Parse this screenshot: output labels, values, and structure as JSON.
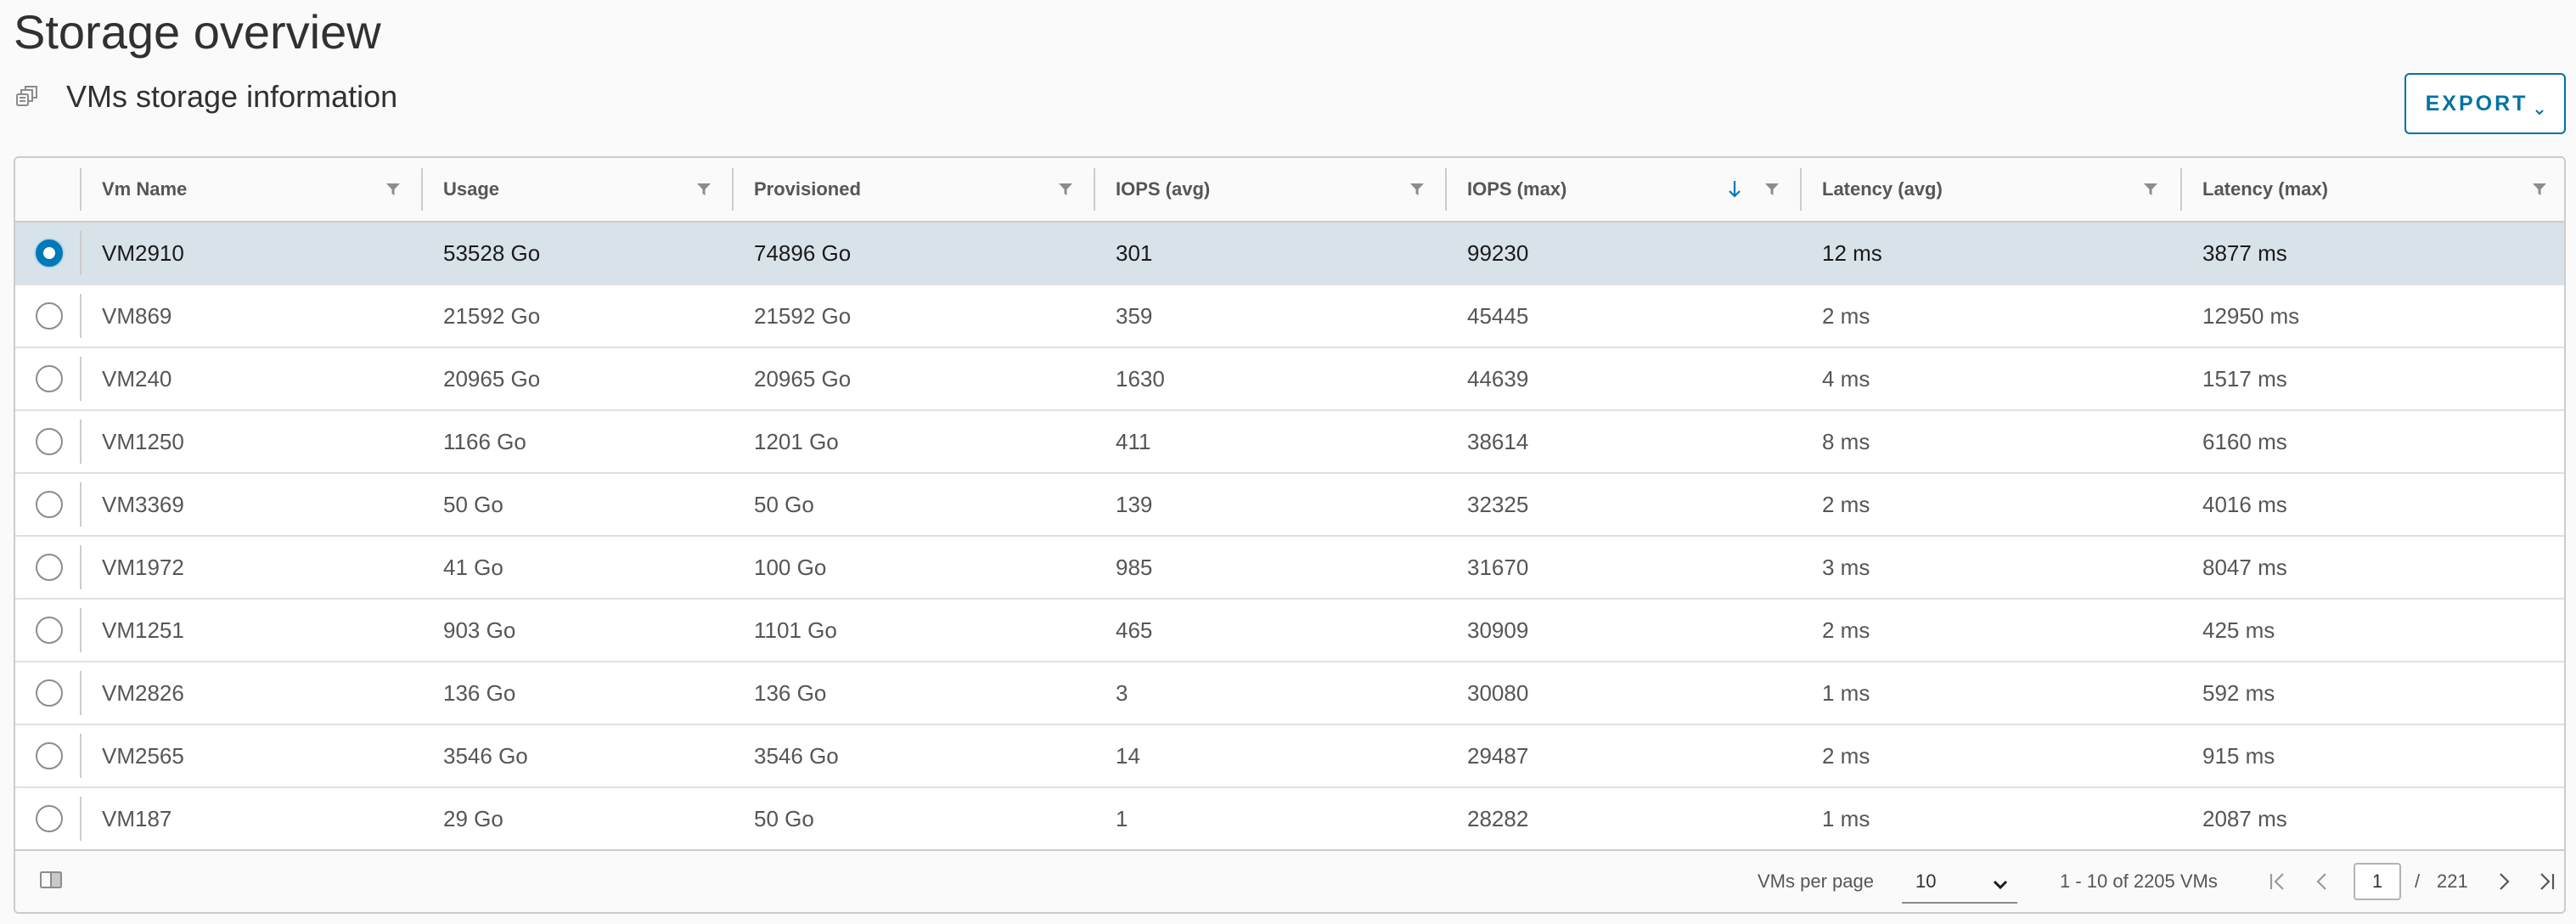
{
  "page": {
    "title": "Storage overview",
    "subtitle": "VMs storage information",
    "subtitle_icon": "copy-stack-icon"
  },
  "toolbar": {
    "export_label": "EXPORT",
    "export_icon": "chevron-down-icon"
  },
  "colors": {
    "accent": "#0072a3",
    "selected_row": "#d8e3e9",
    "radio_checked": "#0079b8",
    "border": "#cccccc"
  },
  "table": {
    "columns": [
      {
        "label": "Vm Name",
        "filter_icon": "filter-icon"
      },
      {
        "label": "Usage",
        "filter_icon": "filter-icon"
      },
      {
        "label": "Provisioned",
        "filter_icon": "filter-icon"
      },
      {
        "label": "IOPS (avg)",
        "filter_icon": "filter-icon"
      },
      {
        "label": "IOPS (max)",
        "filter_icon": "filter-icon",
        "sort": "descending",
        "sort_icon": "arrow-down-icon"
      },
      {
        "label": "Latency (avg)",
        "filter_icon": "filter-icon"
      },
      {
        "label": "Latency (max)",
        "filter_icon": "filter-icon"
      }
    ],
    "selected_index": 0,
    "rows": [
      [
        "VM2910",
        "53528 Go",
        "74896 Go",
        "301",
        "99230",
        "12 ms",
        "3877 ms"
      ],
      [
        "VM869",
        "21592 Go",
        "21592 Go",
        "359",
        "45445",
        "2 ms",
        "12950 ms"
      ],
      [
        "VM240",
        "20965 Go",
        "20965 Go",
        "1630",
        "44639",
        "4 ms",
        "1517 ms"
      ],
      [
        "VM1250",
        "1166 Go",
        "1201 Go",
        "411",
        "38614",
        "8 ms",
        "6160 ms"
      ],
      [
        "VM3369",
        "50 Go",
        "50 Go",
        "139",
        "32325",
        "2 ms",
        "4016 ms"
      ],
      [
        "VM1972",
        "41 Go",
        "100 Go",
        "985",
        "31670",
        "3 ms",
        "8047 ms"
      ],
      [
        "VM1251",
        "903 Go",
        "1101 Go",
        "465",
        "30909",
        "2 ms",
        "425 ms"
      ],
      [
        "VM2826",
        "136 Go",
        "136 Go",
        "3",
        "30080",
        "1 ms",
        "592 ms"
      ],
      [
        "VM2565",
        "3546 Go",
        "3546 Go",
        "14",
        "29487",
        "2 ms",
        "915 ms"
      ],
      [
        "VM187",
        "29 Go",
        "50 Go",
        "1",
        "28282",
        "1 ms",
        "2087 ms"
      ]
    ]
  },
  "footer": {
    "column_toggle_icon": "column-toggle-icon",
    "per_page_label": "VMs per page",
    "per_page_value": "10",
    "range_label": "1 - 10 of 2205 VMs",
    "current_page": "1",
    "page_sep": "/",
    "total_pages": "221",
    "first_icon": "first-page-icon",
    "prev_icon": "chevron-left-icon",
    "next_icon": "chevron-right-icon",
    "last_icon": "last-page-icon"
  }
}
